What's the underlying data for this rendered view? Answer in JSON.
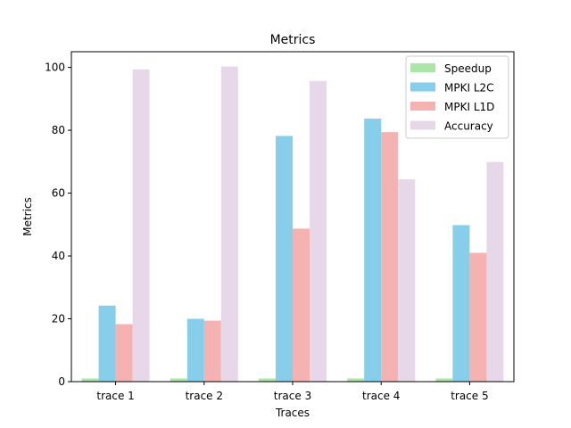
{
  "chart_data": {
    "type": "bar",
    "title": "Metrics",
    "xlabel": "Traces",
    "ylabel": "Metrics",
    "categories": [
      "trace 1",
      "trace 2",
      "trace 3",
      "trace 4",
      "trace 5"
    ],
    "ylim": [
      0,
      105
    ],
    "yticks": [
      0,
      20,
      40,
      60,
      80,
      100
    ],
    "grid": false,
    "legend_position": "top-right",
    "series": [
      {
        "name": "Speedup",
        "color": "#abe5a8",
        "values": [
          1.0,
          1.0,
          1.0,
          1.0,
          1.0
        ]
      },
      {
        "name": "MPKI L2C",
        "color": "#87ceeb",
        "values": [
          24.2,
          20.0,
          78.2,
          83.7,
          49.8
        ]
      },
      {
        "name": "MPKI L1D",
        "color": "#f4b2b0",
        "values": [
          18.3,
          19.4,
          48.7,
          79.4,
          41.0
        ]
      },
      {
        "name": "Accuracy",
        "color": "#e6d8e8",
        "values": [
          99.4,
          100.3,
          95.7,
          64.4,
          69.9
        ]
      }
    ]
  }
}
